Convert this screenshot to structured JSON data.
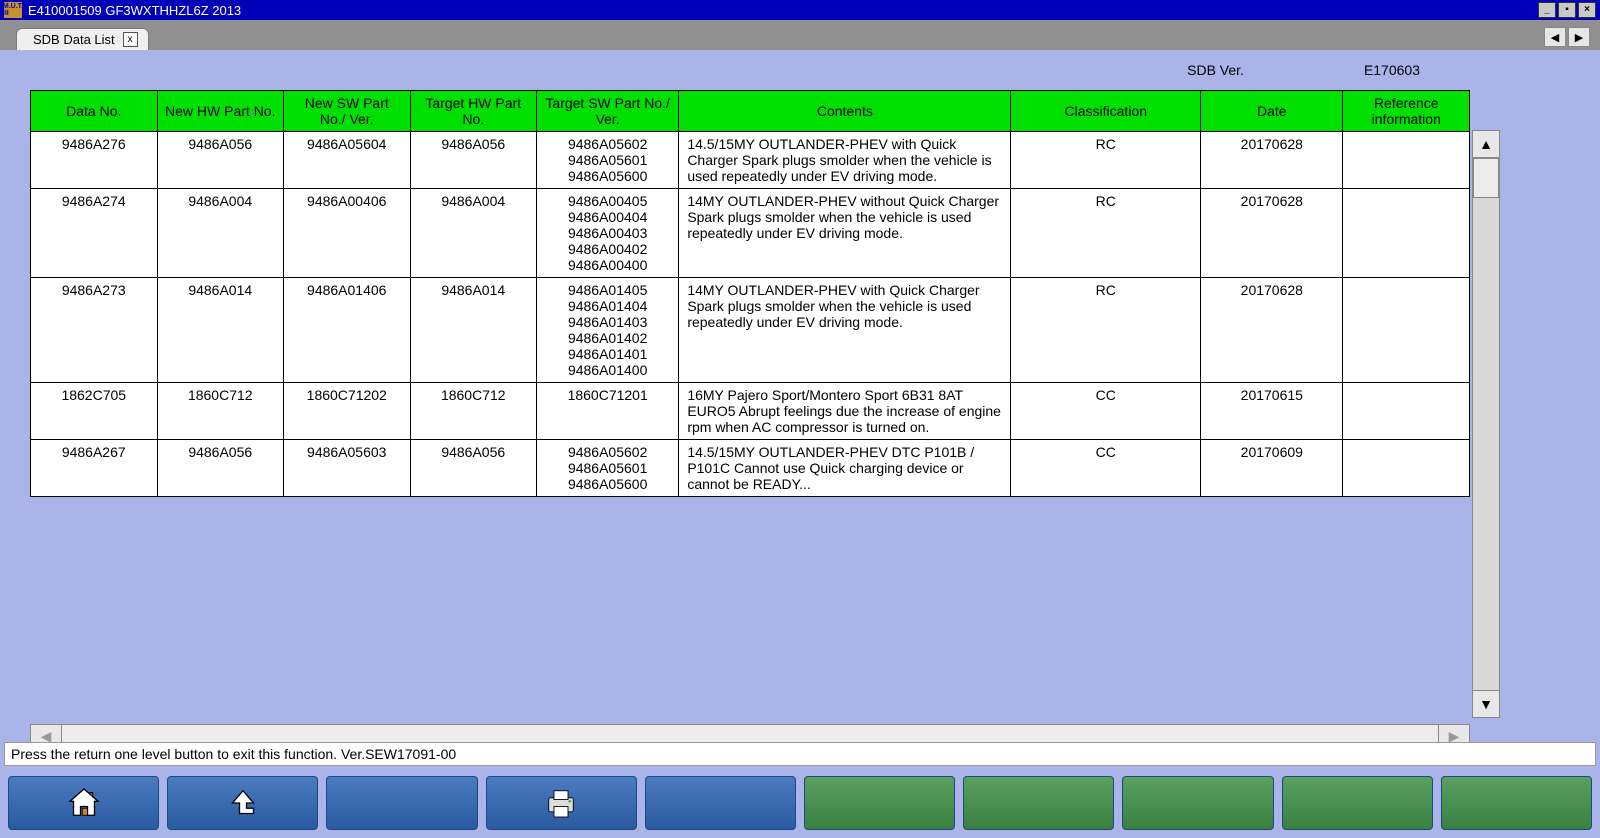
{
  "titlebar": {
    "app_badge": "M.U.T. III",
    "title": "E410001509   GF3WXTHHZL6Z 2013"
  },
  "tab": {
    "label": "SDB Data List"
  },
  "sdb": {
    "label": "SDB Ver.",
    "value": "E170603"
  },
  "columns": {
    "c0": "Data No.",
    "c1": "New HW Part No.",
    "c2": "New SW Part No./\nVer.",
    "c3": "Target HW Part No.",
    "c4": "Target SW Part No./\nVer.",
    "c5": "Contents",
    "c6": "Classification",
    "c7": "Date",
    "c8": "Reference\ninformation"
  },
  "rows": [
    {
      "datano": "9486A276",
      "newhw": "9486A056",
      "newsw": "9486A05604",
      "thw": "9486A056",
      "tsw": "9486A05602\n9486A05601\n9486A05600",
      "contents": "14.5/15MY OUTLANDER-PHEV with Quick Charger Spark plugs smolder when the vehicle is used repeatedly under EV driving mode.",
      "cls": "RC",
      "date": "20170628",
      "ref": ""
    },
    {
      "datano": "9486A274",
      "newhw": "9486A004",
      "newsw": "9486A00406",
      "thw": "9486A004",
      "tsw": "9486A00405\n9486A00404\n9486A00403\n9486A00402\n9486A00400",
      "contents": "14MY OUTLANDER-PHEV without Quick Charger     Spark plugs smolder when the vehicle is used repeatedly under EV driving mode.",
      "cls": "RC",
      "date": "20170628",
      "ref": ""
    },
    {
      "datano": "9486A273",
      "newhw": "9486A014",
      "newsw": "9486A01406",
      "thw": "9486A014",
      "tsw": "9486A01405\n9486A01404\n9486A01403\n9486A01402\n9486A01401\n9486A01400",
      "contents": "14MY OUTLANDER-PHEV with Quick Charger               Spark plugs smolder when the vehicle is used repeatedly under EV driving mode.",
      "cls": "RC",
      "date": "20170628",
      "ref": ""
    },
    {
      "datano": "1862C705",
      "newhw": "1860C712",
      "newsw": "1860C71202",
      "thw": "1860C712",
      "tsw": "1860C71201",
      "contents": "16MY Pajero Sport/Montero Sport 6B31 8AT EURO5     Abrupt feelings due the increase of engine rpm when AC compressor is turned on.",
      "cls": "CC",
      "date": "20170615",
      "ref": ""
    },
    {
      "datano": "9486A267",
      "newhw": "9486A056",
      "newsw": "9486A05603",
      "thw": "9486A056",
      "tsw": "9486A05602\n9486A05601\n9486A05600",
      "contents": "14.5/15MY OUTLANDER-PHEV     DTC P101B / P101C Cannot use Quick charging device or cannot be READY...",
      "cls": "CC",
      "date": "20170609",
      "ref": ""
    }
  ],
  "status": {
    "text": "Press the return one level button to exit this function. Ver.SEW17091-00"
  },
  "colors": {
    "header_bg": "#00e000",
    "page_bg": "#abb4e8",
    "titlebar_bg": "#0000b8"
  }
}
